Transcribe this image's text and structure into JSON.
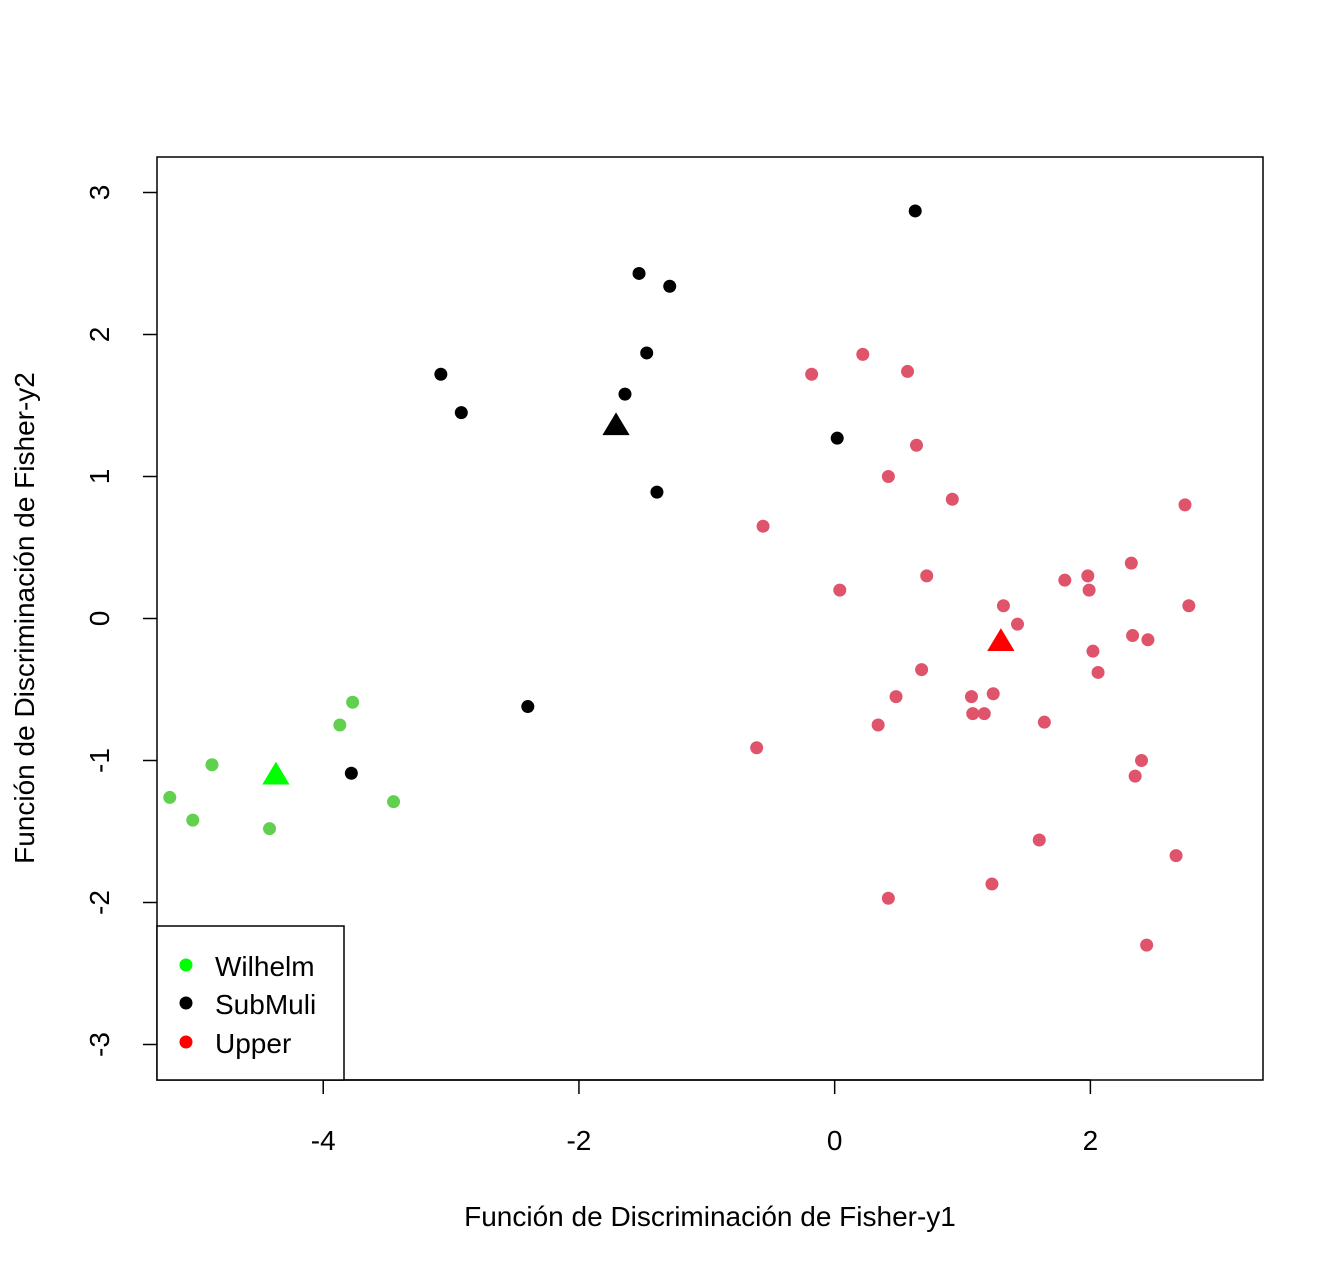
{
  "chart_data": {
    "type": "scatter",
    "title": "",
    "xlabel": "Función de Discriminación de Fisher-y1",
    "ylabel": "Función de Discriminación de Fisher-y2",
    "xlim": [
      -5.3,
      3.35
    ],
    "ylim": [
      -3.25,
      3.25
    ],
    "xticks": [
      -4,
      -2,
      0,
      2
    ],
    "yticks": [
      -3,
      -2,
      -1,
      0,
      1,
      2,
      3
    ],
    "xtick_labels": [
      "-4",
      "-2",
      "0",
      "2"
    ],
    "ytick_labels": [
      "-3",
      "-2",
      "-1",
      "0",
      "1",
      "2",
      "3"
    ],
    "grid": false,
    "legend": {
      "position": "bottom-left",
      "entries": [
        {
          "label": "Wilhelm",
          "color": "#00ff00"
        },
        {
          "label": "SubMuli",
          "color": "#000000"
        },
        {
          "label": "Upper",
          "color": "#ff0000"
        }
      ]
    },
    "series": [
      {
        "color": "#61d04f",
        "marker": "circle",
        "points": [
          [
            -5.2,
            -1.26
          ],
          [
            -5.02,
            -1.42
          ],
          [
            -4.87,
            -1.03
          ],
          [
            -4.42,
            -1.48
          ],
          [
            -3.87,
            -0.75
          ],
          [
            -3.77,
            -0.59
          ],
          [
            -3.45,
            -1.29
          ]
        ]
      },
      {
        "color": "#000000",
        "marker": "circle",
        "points": [
          [
            -3.78,
            -1.09
          ],
          [
            -3.08,
            1.72
          ],
          [
            -2.92,
            1.45
          ],
          [
            -2.4,
            -0.62
          ],
          [
            -1.64,
            1.58
          ],
          [
            -1.53,
            2.43
          ],
          [
            -1.47,
            1.87
          ],
          [
            -1.39,
            0.89
          ],
          [
            -1.29,
            2.34
          ],
          [
            0.02,
            1.27
          ],
          [
            0.63,
            2.87
          ]
        ]
      },
      {
        "color": "#df536b",
        "marker": "circle",
        "points": [
          [
            -0.61,
            -0.91
          ],
          [
            -0.56,
            0.65
          ],
          [
            -0.18,
            1.72
          ],
          [
            0.04,
            0.2
          ],
          [
            0.22,
            1.86
          ],
          [
            0.34,
            -0.75
          ],
          [
            0.42,
            1.0
          ],
          [
            0.42,
            -1.97
          ],
          [
            0.48,
            -0.55
          ],
          [
            0.57,
            1.74
          ],
          [
            0.64,
            1.22
          ],
          [
            0.68,
            -0.36
          ],
          [
            0.72,
            0.3
          ],
          [
            0.92,
            0.84
          ],
          [
            1.07,
            -0.55
          ],
          [
            1.08,
            -0.67
          ],
          [
            1.17,
            -0.67
          ],
          [
            1.23,
            -1.87
          ],
          [
            1.24,
            -0.53
          ],
          [
            1.32,
            0.09
          ],
          [
            1.43,
            -0.04
          ],
          [
            1.6,
            -1.56
          ],
          [
            1.64,
            -0.73
          ],
          [
            1.8,
            0.27
          ],
          [
            1.98,
            0.3
          ],
          [
            1.99,
            0.2
          ],
          [
            2.02,
            -0.23
          ],
          [
            2.06,
            -0.38
          ],
          [
            2.32,
            0.39
          ],
          [
            2.33,
            -0.12
          ],
          [
            2.35,
            -1.11
          ],
          [
            2.4,
            -1.0
          ],
          [
            2.44,
            -2.3
          ],
          [
            2.45,
            -0.15
          ],
          [
            2.67,
            -1.67
          ],
          [
            2.74,
            0.8
          ],
          [
            2.77,
            0.09
          ]
        ]
      }
    ],
    "centroids": [
      {
        "color": "#00ff00",
        "marker": "triangle",
        "x": -4.37,
        "y": -1.1
      },
      {
        "color": "#000000",
        "marker": "triangle",
        "x": -1.71,
        "y": 1.36
      },
      {
        "color": "#ff0000",
        "marker": "triangle",
        "x": 1.3,
        "y": -0.16
      }
    ]
  }
}
